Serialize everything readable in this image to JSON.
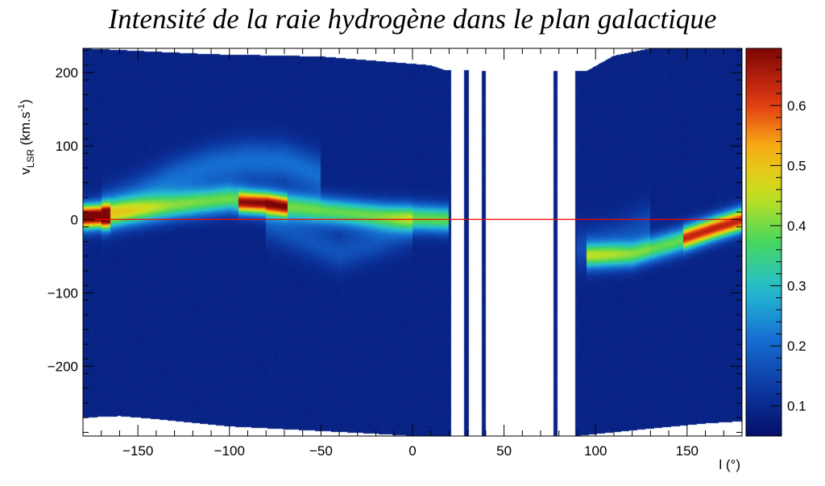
{
  "chart_data": {
    "type": "heatmap",
    "title": "Intensité de la raie hydrogène dans le plan galactique",
    "xlabel": "l (°)",
    "ylabel": {
      "base": "v",
      "sub": "LSR",
      "unit_prefix": " (km.s",
      "sup": "-1",
      "unit_suffix": ")"
    },
    "xlim": [
      -180,
      180
    ],
    "ylim": [
      -295,
      233
    ],
    "x_ticks": [
      {
        "value": -150,
        "label": "−150"
      },
      {
        "value": -100,
        "label": "−100"
      },
      {
        "value": -50,
        "label": "−50"
      },
      {
        "value": 0,
        "label": "0"
      },
      {
        "value": 50,
        "label": "50"
      },
      {
        "value": 100,
        "label": "100"
      },
      {
        "value": 150,
        "label": "150"
      }
    ],
    "y_ticks": [
      {
        "value": 200,
        "label": "200"
      },
      {
        "value": 100,
        "label": "100"
      },
      {
        "value": 0,
        "label": "0"
      },
      {
        "value": -100,
        "label": "−100"
      },
      {
        "value": -200,
        "label": "−200"
      }
    ],
    "colorbar": {
      "range": [
        0.05,
        0.695
      ],
      "ticks": [
        {
          "value": 0.1,
          "label": "0.1"
        },
        {
          "value": 0.2,
          "label": "0.2"
        },
        {
          "value": 0.3,
          "label": "0.3"
        },
        {
          "value": 0.4,
          "label": "0.4"
        },
        {
          "value": 0.5,
          "label": "0.5"
        },
        {
          "value": 0.6,
          "label": "0.6"
        }
      ],
      "palette": "rainbow (dark blue to dark red)"
    },
    "reference_line": {
      "y": 0,
      "color": "#ff0000"
    },
    "background_intensity": 0.09,
    "components": [
      {
        "description": "main disk emission",
        "points": [
          [
            -180,
            3
          ],
          [
            -150,
            12
          ],
          [
            -120,
            22
          ],
          [
            -100,
            28
          ],
          [
            -80,
            22
          ],
          [
            -50,
            12
          ],
          [
            -20,
            5
          ],
          [
            0,
            2
          ],
          [
            20,
            0
          ]
        ],
        "width": 13,
        "amplitude": 0.3
      },
      {
        "description": "upper arm",
        "points": [
          [
            -170,
            8
          ],
          [
            -150,
            30
          ],
          [
            -130,
            55
          ],
          [
            -110,
            72
          ],
          [
            -90,
            80
          ],
          [
            -70,
            78
          ],
          [
            -50,
            60
          ]
        ],
        "width": 20,
        "amplitude": 0.12
      },
      {
        "description": "lower wing",
        "points": [
          [
            -80,
            -5
          ],
          [
            -60,
            -25
          ],
          [
            -40,
            -45
          ],
          [
            -20,
            -30
          ],
          [
            0,
            -10
          ]
        ],
        "width": 18,
        "amplitude": 0.08
      },
      {
        "description": "peak near l=-80",
        "points": [
          [
            -95,
            22
          ],
          [
            -80,
            22
          ],
          [
            -68,
            17
          ]
        ],
        "width": 9,
        "amplitude": 0.3
      },
      {
        "description": "peak near l=-175",
        "points": [
          [
            -180,
            4
          ],
          [
            -172,
            4
          ],
          [
            -165,
            3
          ]
        ],
        "width": 10,
        "amplitude": 0.38
      },
      {
        "description": "outer disk l>90",
        "points": [
          [
            95,
            -50
          ],
          [
            120,
            -48
          ],
          [
            145,
            -30
          ],
          [
            165,
            -12
          ],
          [
            180,
            0
          ]
        ],
        "width": 12,
        "amplitude": 0.3
      },
      {
        "description": "outer disk peak",
        "points": [
          [
            148,
            -25
          ],
          [
            165,
            -12
          ],
          [
            180,
            -1
          ]
        ],
        "width": 10,
        "amplitude": 0.25
      },
      {
        "description": "outer faint wing",
        "points": [
          [
            90,
            -40
          ],
          [
            110,
            -30
          ],
          [
            130,
            -5
          ]
        ],
        "width": 20,
        "amplitude": 0.07
      }
    ],
    "data_coverage": {
      "gap_l": [
        21,
        89
      ],
      "observed_stripes_in_gap_l": [
        [
          28,
          31
        ],
        [
          38,
          40
        ],
        [
          77,
          79
        ]
      ],
      "top_limit_v": [
        [
          -180,
          233
        ],
        [
          -110,
          225
        ],
        [
          -50,
          222
        ],
        [
          10,
          210
        ],
        [
          18,
          203
        ],
        [
          95,
          202
        ],
        [
          110,
          223
        ],
        [
          130,
          233
        ],
        [
          180,
          233
        ]
      ],
      "bottom_limit_v": [
        [
          -180,
          -270
        ],
        [
          -160,
          -268
        ],
        [
          -140,
          -272
        ],
        [
          -120,
          -277
        ],
        [
          -100,
          -282
        ],
        [
          -60,
          -287
        ],
        [
          -20,
          -292
        ],
        [
          0,
          -295
        ],
        [
          90,
          -295
        ],
        [
          130,
          -285
        ],
        [
          160,
          -278
        ],
        [
          180,
          -275
        ]
      ]
    }
  }
}
